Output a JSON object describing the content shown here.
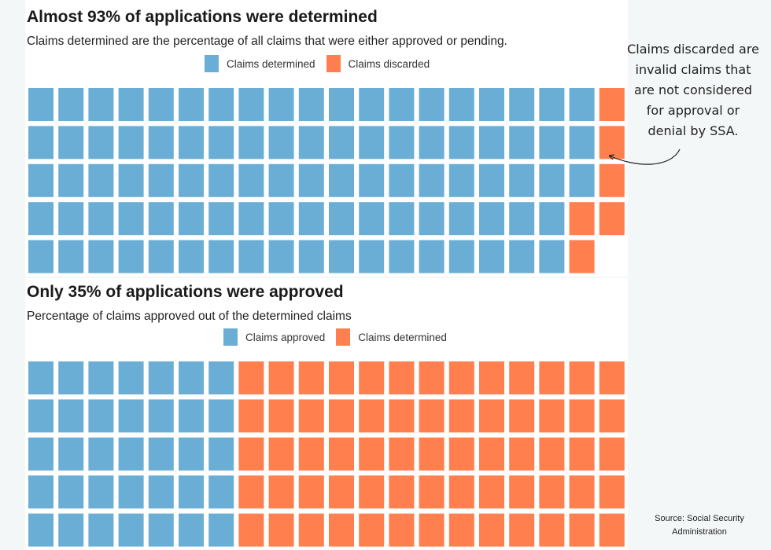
{
  "colors": {
    "blue": "#6aaed6",
    "orange": "#ff7f4f",
    "empty": "#f4f7f7"
  },
  "chart_data": [
    {
      "type": "waffle",
      "title": "Almost 93% of applications were determined",
      "subtitle": "Claims determined are the percentage of all claims that were either approved or pending.",
      "grid": {
        "rows": 5,
        "cols": 20
      },
      "series": [
        {
          "name": "Claims determined",
          "value": 93,
          "color": "#6aaed6"
        },
        {
          "name": "Claims discarded",
          "value": 6,
          "color": "#ff7f4f"
        }
      ],
      "unfilled_cells": 1,
      "annotation": "Claims discarded are invalid claims that are not considered for approval or denial by SSA."
    },
    {
      "type": "waffle",
      "title": "Only 35% of applications were approved",
      "subtitle": "Percentage of claims approved out of the determined claims",
      "grid": {
        "rows": 5,
        "cols": 20
      },
      "series": [
        {
          "name": "Claims approved",
          "value": 35,
          "color": "#6aaed6"
        },
        {
          "name": "Claims determined",
          "value": 65,
          "color": "#ff7f4f"
        }
      ]
    }
  ],
  "source": "Source: Social Security Administration"
}
